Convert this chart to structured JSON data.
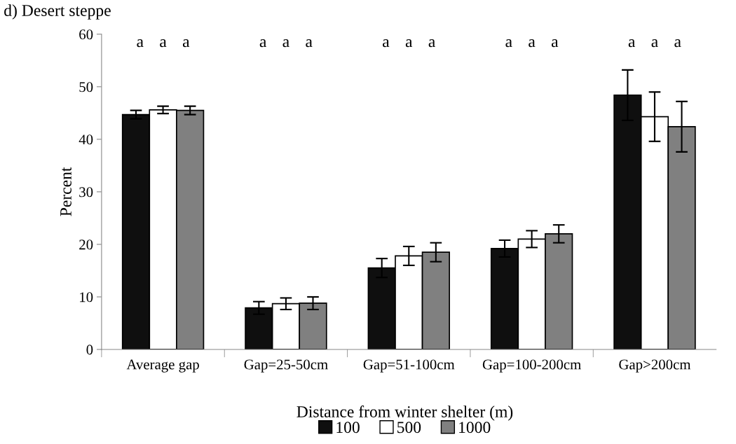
{
  "chart_data": {
    "type": "bar",
    "title": "d) Desert steppe",
    "ylabel": "Percent",
    "legend_title": "Distance from winter shelter (m)",
    "categories": [
      "Average gap",
      "Gap=25-50cm",
      "Gap=51-100cm",
      "Gap=100-200cm",
      "Gap>200cm"
    ],
    "series": [
      {
        "name": "100",
        "color": "#0f0f0f",
        "values": [
          44.7,
          7.9,
          15.5,
          19.2,
          48.4
        ],
        "errors": [
          0.8,
          1.2,
          1.8,
          1.6,
          4.8
        ]
      },
      {
        "name": "500",
        "color": "#ffffff",
        "values": [
          45.6,
          8.7,
          17.8,
          21.0,
          44.3
        ],
        "errors": [
          0.7,
          1.1,
          1.8,
          1.6,
          4.7
        ]
      },
      {
        "name": "1000",
        "color": "#808080",
        "values": [
          45.5,
          8.8,
          18.5,
          22.0,
          42.4
        ],
        "errors": [
          0.8,
          1.2,
          1.8,
          1.7,
          4.8
        ]
      }
    ],
    "ylim": [
      0,
      60
    ],
    "yticks": [
      0,
      10,
      20,
      30,
      40,
      50,
      60
    ],
    "grid": false,
    "legend": "bottom",
    "annotations": [
      "a",
      "a",
      "a",
      "a",
      "a",
      "a",
      "a",
      "a",
      "a",
      "a",
      "a",
      "a",
      "a",
      "a",
      "a"
    ]
  }
}
